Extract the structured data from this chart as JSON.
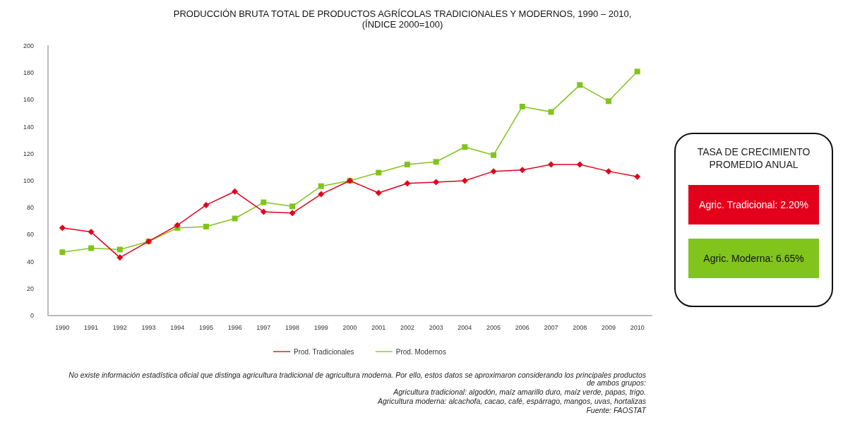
{
  "chart_data": {
    "type": "line",
    "title": "PRODUCCIÓN BRUTA TOTAL DE PRODUCTOS AGRÍCOLAS TRADICIONALES Y MODERNOS, 1990 – 2010,",
    "subtitle": "(ÍNDICE 2000=100)",
    "categories": [
      "1990",
      "1991",
      "1992",
      "1993",
      "1994",
      "1995",
      "1996",
      "1997",
      "1998",
      "1999",
      "2000",
      "2001",
      "2002",
      "2003",
      "2004",
      "2005",
      "2006",
      "2007",
      "2008",
      "2009",
      "2010"
    ],
    "series": [
      {
        "name": "Prod. Tradicionales",
        "color": "#e3001b",
        "marker": "diamond",
        "values": [
          65,
          62,
          43,
          55,
          67,
          82,
          92,
          77,
          76,
          90,
          100,
          91,
          98,
          99,
          100,
          107,
          108,
          112,
          112,
          107,
          103
        ]
      },
      {
        "name": "Prod. Modernos",
        "color": "#80c41c",
        "marker": "square",
        "values": [
          47,
          50,
          49,
          55,
          65,
          66,
          72,
          84,
          81,
          96,
          100,
          106,
          112,
          114,
          125,
          119,
          155,
          151,
          171,
          159,
          181
        ]
      }
    ],
    "ylim": [
      0,
      200
    ],
    "yticks": [
      0,
      20,
      40,
      60,
      80,
      100,
      120,
      140,
      160,
      180,
      200
    ],
    "grid": false,
    "legend": "bottom",
    "line_style": "solid",
    "annotations": [
      "TASA DE CRECIMIENTO PROMEDIO ANUAL",
      "Agric. Tradicional: 2.20%",
      "Agric. Moderna: 6.65%",
      "No existe información estadística oficial que distinga agricultura tradicional de agricultura moderna. Por ello, estos datos se aproximaron considerando los principales productos de ambos grupos:",
      "Agricultura tradicional: algodón, maíz amarillo duro, maíz verde, papas, trigo.",
      "Agricultura moderna: alcachofa, cacao, café, espárrago, mangos, uvas, hortalizas",
      "Fuente: FAOSTAT"
    ]
  }
}
